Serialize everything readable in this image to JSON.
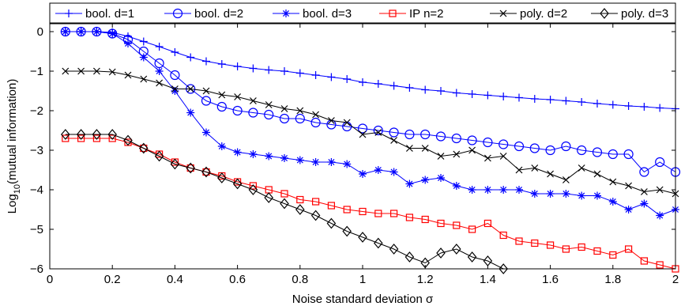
{
  "chart_data": {
    "type": "line",
    "xlabel": "Noise standard deviation σ",
    "ylabel": "Log10(mutual information)",
    "ylabel_parts": {
      "base": "Log",
      "sub": "10",
      "rest": "(mutual information)"
    },
    "xlim": [
      0,
      2
    ],
    "ylim": [
      -6,
      0.2
    ],
    "xticks": [
      0,
      0.2,
      0.4,
      0.6,
      0.8,
      1,
      1.2,
      1.4,
      1.6,
      1.8,
      2
    ],
    "xtick_labels": [
      "0",
      "0.2",
      "0.4",
      "0.6",
      "0.8",
      "1",
      "1.2",
      "1.4",
      "1.6",
      "1.8",
      "2"
    ],
    "yticks": [
      0,
      -1,
      -2,
      -3,
      -4,
      -5,
      -6
    ],
    "ytick_labels": [
      "0",
      "−1",
      "−2",
      "−3",
      "−4",
      "−5",
      "−6"
    ],
    "grid": false,
    "legend_position": "top",
    "x": [
      0.05,
      0.1,
      0.15,
      0.2,
      0.25,
      0.3,
      0.35,
      0.4,
      0.45,
      0.5,
      0.55,
      0.6,
      0.65,
      0.7,
      0.75,
      0.8,
      0.85,
      0.9,
      0.95,
      1.0,
      1.05,
      1.1,
      1.15,
      1.2,
      1.25,
      1.3,
      1.35,
      1.4,
      1.45,
      1.5,
      1.55,
      1.6,
      1.65,
      1.7,
      1.75,
      1.8,
      1.85,
      1.9,
      1.95,
      2.0
    ],
    "series": [
      {
        "name": "bool. d=1",
        "color": "#0000ff",
        "marker": "plus",
        "values": [
          0.0,
          0.0,
          0.0,
          -0.02,
          -0.12,
          -0.25,
          -0.38,
          -0.52,
          -0.65,
          -0.75,
          -0.82,
          -0.88,
          -0.93,
          -0.97,
          -1.0,
          -1.05,
          -1.1,
          -1.15,
          -1.2,
          -1.28,
          -1.32,
          -1.37,
          -1.42,
          -1.47,
          -1.5,
          -1.55,
          -1.58,
          -1.61,
          -1.64,
          -1.67,
          -1.7,
          -1.72,
          -1.75,
          -1.78,
          -1.82,
          -1.85,
          -1.88,
          -1.9,
          -1.93,
          -1.95
        ]
      },
      {
        "name": "bool. d=2",
        "color": "#0000ff",
        "marker": "circle",
        "values": [
          0.0,
          0.0,
          0.0,
          -0.05,
          -0.2,
          -0.5,
          -0.8,
          -1.1,
          -1.45,
          -1.75,
          -1.9,
          -2.0,
          -2.05,
          -2.1,
          -2.2,
          -2.2,
          -2.3,
          -2.35,
          -2.4,
          -2.45,
          -2.5,
          -2.55,
          -2.6,
          -2.6,
          -2.65,
          -2.7,
          -2.75,
          -2.8,
          -2.85,
          -2.9,
          -2.95,
          -3.0,
          -2.9,
          -3.0,
          -3.05,
          -3.1,
          -3.1,
          -3.55,
          -3.3,
          -3.55
        ]
      },
      {
        "name": "bool. d=3",
        "color": "#0000ff",
        "marker": "star",
        "values": [
          0.0,
          0.0,
          0.0,
          -0.05,
          -0.3,
          -0.65,
          -1.0,
          -1.5,
          -2.05,
          -2.55,
          -2.9,
          -3.05,
          -3.1,
          -3.15,
          -3.2,
          -3.25,
          -3.3,
          -3.3,
          -3.35,
          -3.6,
          -3.5,
          -3.55,
          -3.85,
          -3.75,
          -3.7,
          -3.9,
          -4.0,
          -4.0,
          -4.0,
          -4.0,
          -4.1,
          -4.1,
          -4.1,
          -4.15,
          -4.15,
          -4.3,
          -4.5,
          -4.35,
          -4.65,
          -4.5
        ]
      },
      {
        "name": "IP n=2",
        "color": "#ff0000",
        "marker": "square",
        "values": [
          -2.7,
          -2.7,
          -2.7,
          -2.7,
          -2.8,
          -2.95,
          -3.1,
          -3.3,
          -3.45,
          -3.55,
          -3.65,
          -3.8,
          -3.9,
          -4.0,
          -4.1,
          -4.25,
          -4.3,
          -4.4,
          -4.5,
          -4.55,
          -4.6,
          -4.6,
          -4.7,
          -4.75,
          -4.85,
          -4.9,
          -5.0,
          -4.85,
          -5.15,
          -5.3,
          -5.35,
          -5.4,
          -5.5,
          -5.45,
          -5.55,
          -5.65,
          -5.5,
          -5.8,
          -5.9,
          -6.0
        ]
      },
      {
        "name": "poly. d=2",
        "color": "#000000",
        "marker": "x",
        "values": [
          -1.0,
          -1.0,
          -1.0,
          -1.02,
          -1.1,
          -1.2,
          -1.3,
          -1.45,
          -1.45,
          -1.5,
          -1.6,
          -1.65,
          -1.75,
          -1.85,
          -1.95,
          -2.0,
          -2.1,
          -2.25,
          -2.3,
          -2.6,
          -2.55,
          -2.75,
          -2.95,
          -2.95,
          -3.15,
          -3.1,
          -3.0,
          -3.2,
          -3.15,
          -3.5,
          -3.45,
          -3.6,
          -3.75,
          -3.45,
          -3.6,
          -3.8,
          -3.9,
          -4.05,
          -4.0,
          -4.1
        ]
      },
      {
        "name": "poly. d=3",
        "color": "#000000",
        "marker": "diamond",
        "values": [
          -2.6,
          -2.6,
          -2.6,
          -2.6,
          -2.75,
          -2.95,
          -3.15,
          -3.35,
          -3.45,
          -3.55,
          -3.7,
          -3.85,
          -4.0,
          -4.2,
          -4.35,
          -4.5,
          -4.65,
          -4.85,
          -5.05,
          -5.2,
          -5.35,
          -5.5,
          -5.7,
          -5.85,
          -5.6,
          -5.5,
          -5.7,
          -5.8,
          -6.0,
          null,
          null,
          null,
          null,
          null,
          null,
          null,
          null,
          null,
          null,
          null
        ]
      }
    ]
  }
}
